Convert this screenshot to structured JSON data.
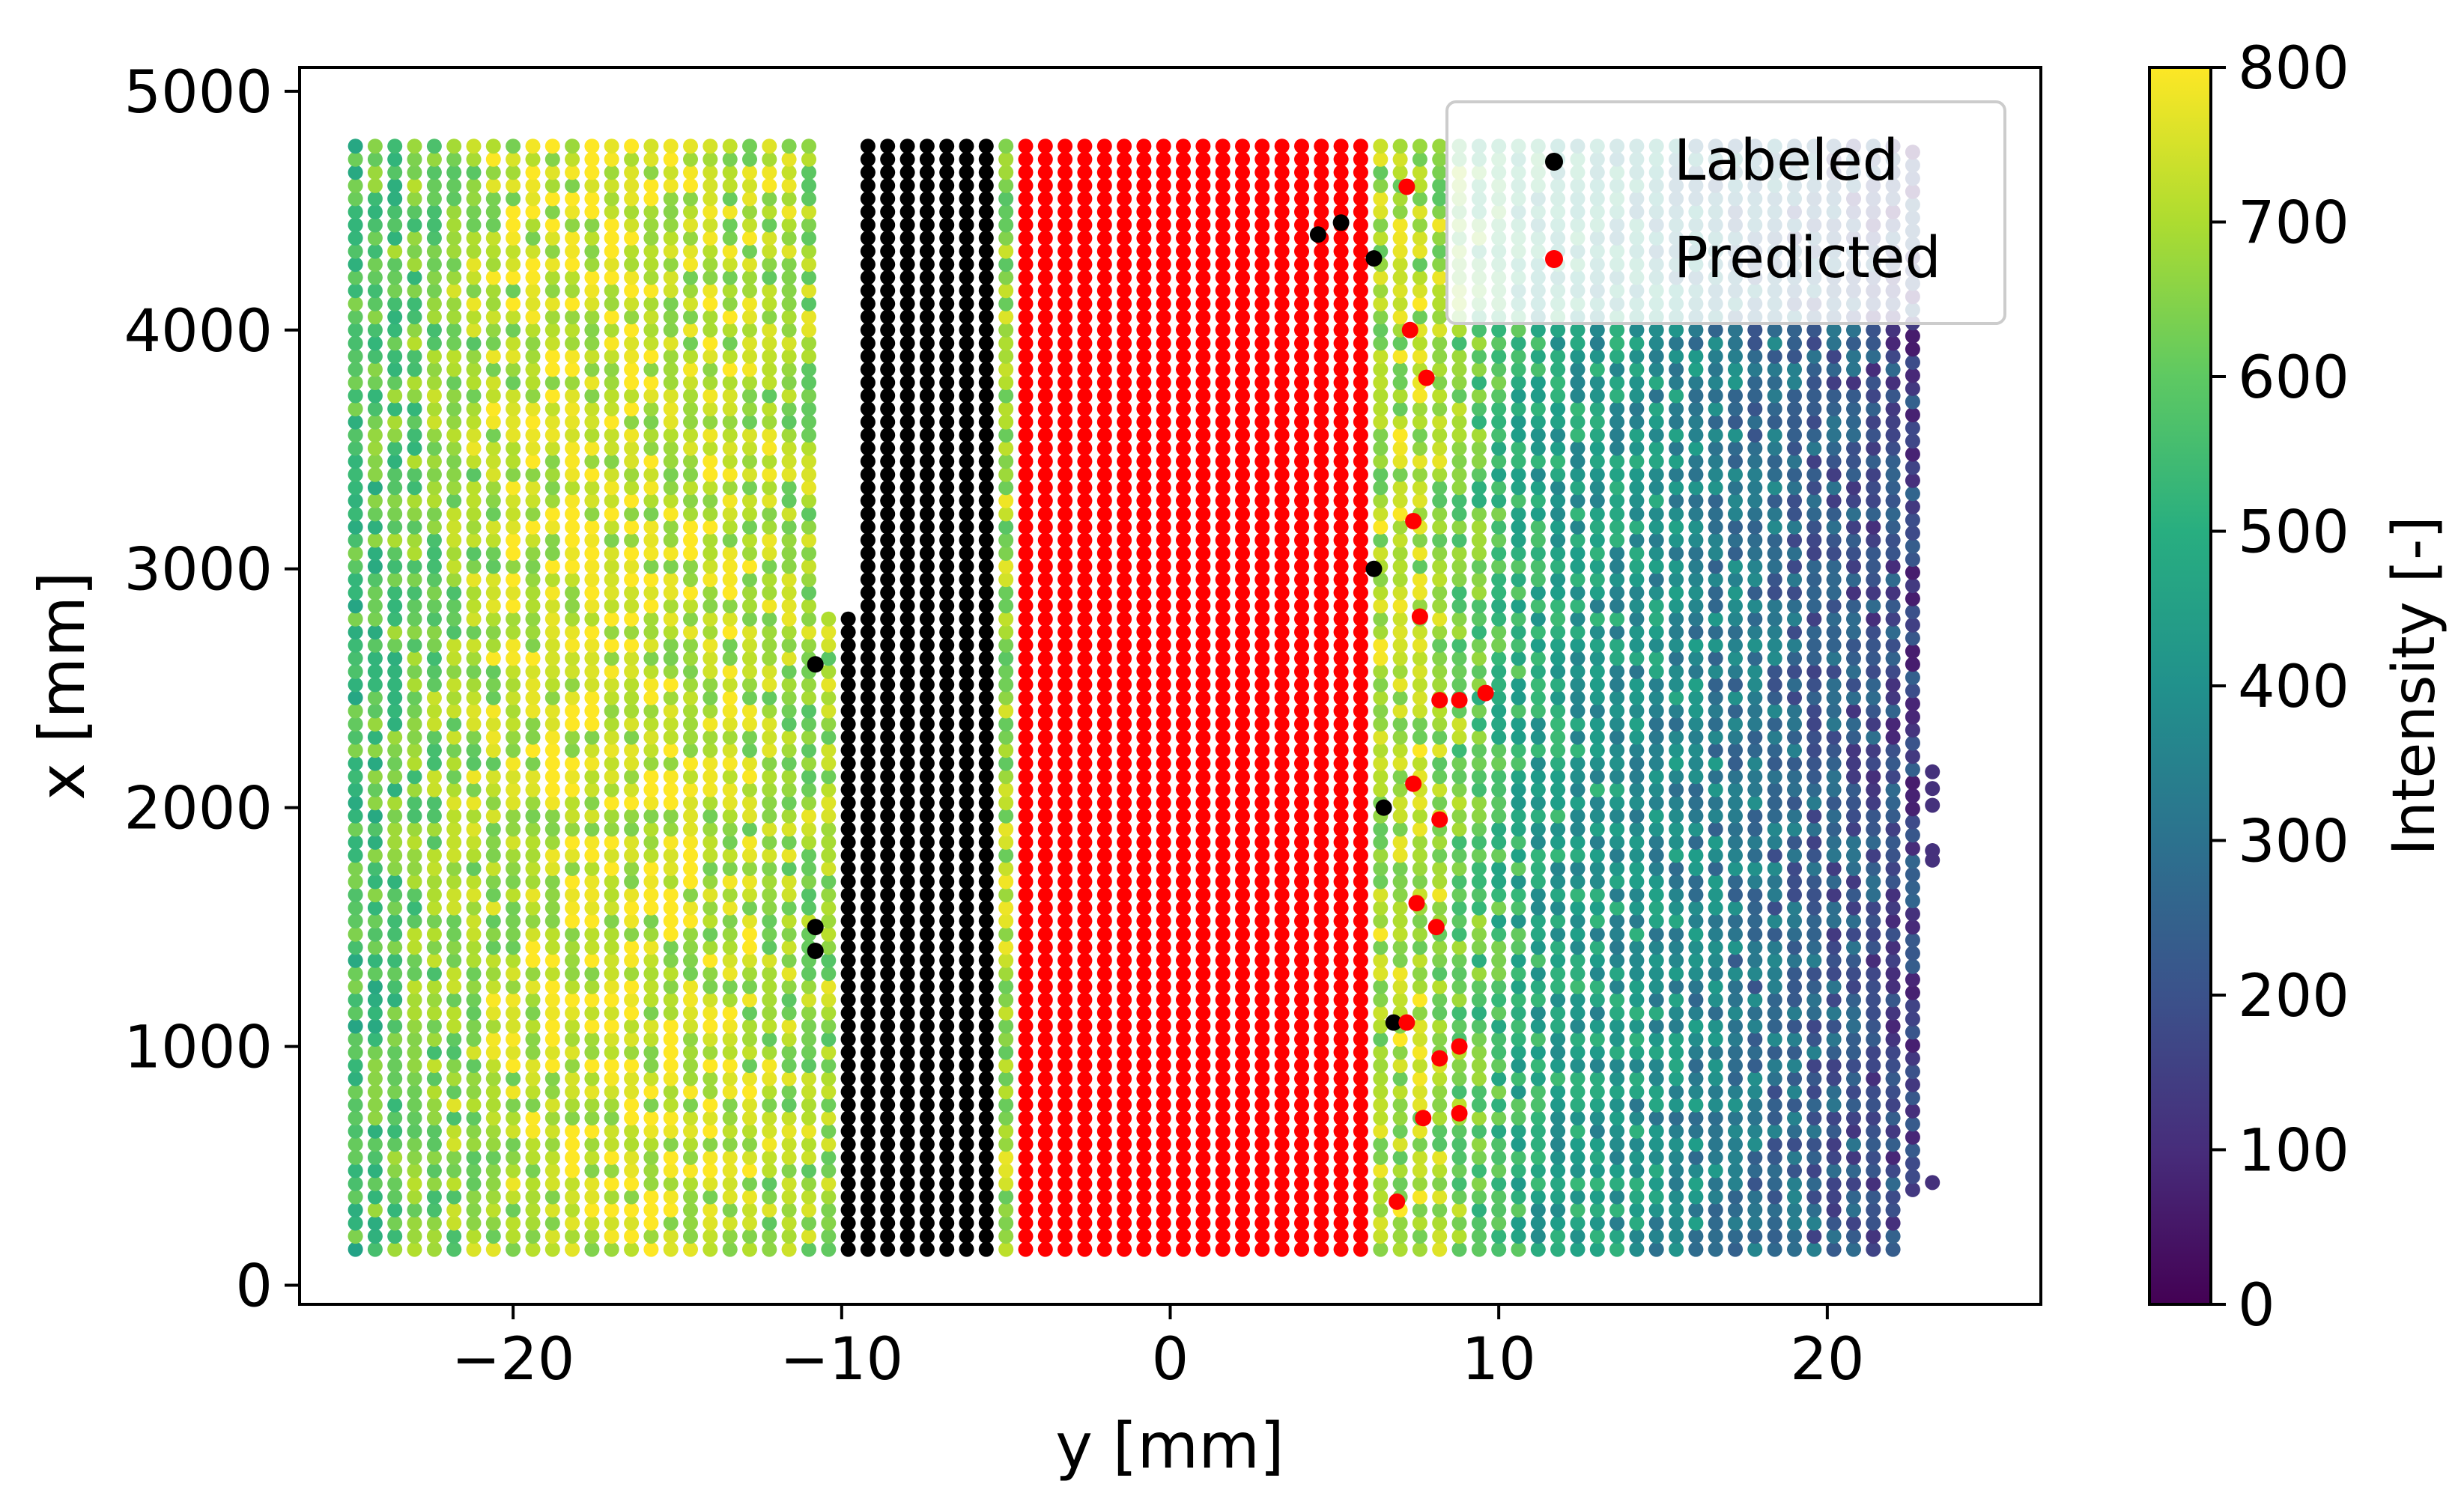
{
  "chart_data": {
    "type": "scatter",
    "title": "",
    "xlabel": "y [mm]",
    "ylabel": "x [mm]",
    "xlim": [
      -26.5,
      26.5
    ],
    "ylim": [
      -80,
      5100
    ],
    "xticks": [
      -20,
      -10,
      0,
      10,
      20
    ],
    "xtick_labels": [
      "−20",
      "−10",
      "0",
      "10",
      "20"
    ],
    "yticks": [
      0,
      1000,
      2000,
      3000,
      4000,
      5000
    ],
    "ytick_labels": [
      "0",
      "1000",
      "2000",
      "3000",
      "4000",
      "5000"
    ],
    "grid": false,
    "scan_lines": {
      "y_start": -24.8,
      "y_end": 23.5,
      "y_step": 0.6,
      "x_min": 150,
      "x_max": 4780,
      "x_step": 55
    },
    "series": [
      {
        "name": "Intensity",
        "colormap": "viridis",
        "description": "scan points colored by intensity",
        "y_range": [
          -24.8,
          23.5
        ],
        "x_range": [
          150,
          4780
        ],
        "intensity_profile": [
          {
            "y": -24.8,
            "intensity": 560
          },
          {
            "y": -22,
            "intensity": 660
          },
          {
            "y": -19,
            "intensity": 745
          },
          {
            "y": -16,
            "intensity": 740
          },
          {
            "y": -13,
            "intensity": 710
          },
          {
            "y": -11,
            "intensity": 680
          },
          {
            "y": 8,
            "intensity": 700
          },
          {
            "y": 11,
            "intensity": 480
          },
          {
            "y": 14,
            "intensity": 420
          },
          {
            "y": 17,
            "intensity": 330
          },
          {
            "y": 20,
            "intensity": 240
          },
          {
            "y": 23.5,
            "intensity": 130
          }
        ]
      },
      {
        "name": "Labeled",
        "color": "#000000",
        "y_range": [
          -10.3,
          -5.0
        ],
        "x_range": [
          150,
          4780
        ],
        "extra_points": [
          {
            "y": -10.8,
            "x": 2600
          },
          {
            "y": -10.8,
            "x": 1500
          },
          {
            "y": -10.8,
            "x": 1400
          },
          {
            "y": 6.2,
            "x": 4300
          },
          {
            "y": 6.2,
            "x": 3000
          },
          {
            "y": 6.5,
            "x": 2000
          },
          {
            "y": 6.8,
            "x": 1100
          },
          {
            "y": 4.5,
            "x": 4400
          },
          {
            "y": 5.2,
            "x": 4450
          }
        ]
      },
      {
        "name": "Predicted",
        "color": "#ff0000",
        "y_range": [
          -4.4,
          6.2
        ],
        "x_range": [
          150,
          4780
        ],
        "extra_points": [
          {
            "y": 7.2,
            "x": 4600
          },
          {
            "y": 7.3,
            "x": 4000
          },
          {
            "y": 7.8,
            "x": 3800
          },
          {
            "y": 7.4,
            "x": 3200
          },
          {
            "y": 7.6,
            "x": 2800
          },
          {
            "y": 8.2,
            "x": 2450
          },
          {
            "y": 9.6,
            "x": 2480
          },
          {
            "y": 8.8,
            "x": 2450
          },
          {
            "y": 7.4,
            "x": 2100
          },
          {
            "y": 8.2,
            "x": 1950
          },
          {
            "y": 7.5,
            "x": 1600
          },
          {
            "y": 8.1,
            "x": 1500
          },
          {
            "y": 7.2,
            "x": 1100
          },
          {
            "y": 8.2,
            "x": 950
          },
          {
            "y": 8.8,
            "x": 1000
          },
          {
            "y": 7.7,
            "x": 700
          },
          {
            "y": 8.8,
            "x": 720
          },
          {
            "y": 6.9,
            "x": 350
          }
        ]
      }
    ],
    "colorbar": {
      "label": "Intensity [-]",
      "cmap": "viridis",
      "range": [
        0,
        800
      ],
      "ticks": [
        "0",
        "100",
        "200",
        "300",
        "400",
        "500",
        "600",
        "700",
        "800"
      ]
    },
    "legend": {
      "placement": "top-right",
      "entries": [
        {
          "label": "Labeled",
          "color": "#000000"
        },
        {
          "label": "Predicted",
          "color": "#ff0000"
        }
      ]
    }
  }
}
